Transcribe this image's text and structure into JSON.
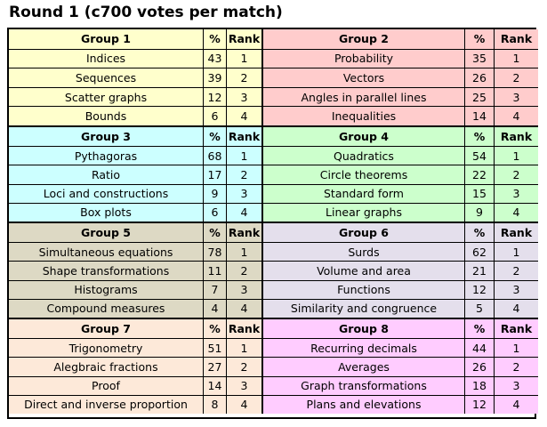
{
  "title": "Round 1 (c700 votes per match)",
  "columns": {
    "pct": "%",
    "rank": "Rank"
  },
  "groups": [
    {
      "name": "Group 1",
      "color": "#FFFFCC",
      "items": [
        {
          "topic": "Indices",
          "pct": "43",
          "rank": "1"
        },
        {
          "topic": "Sequences",
          "pct": "39",
          "rank": "2"
        },
        {
          "topic": "Scatter graphs",
          "pct": "12",
          "rank": "3"
        },
        {
          "topic": "Bounds",
          "pct": "6",
          "rank": "4"
        }
      ]
    },
    {
      "name": "Group 2",
      "color": "#FFCCCC",
      "items": [
        {
          "topic": "Probability",
          "pct": "35",
          "rank": "1"
        },
        {
          "topic": "Vectors",
          "pct": "26",
          "rank": "2"
        },
        {
          "topic": "Angles in parallel lines",
          "pct": "25",
          "rank": "3"
        },
        {
          "topic": "Inequalities",
          "pct": "14",
          "rank": "4"
        }
      ]
    },
    {
      "name": "Group 3",
      "color": "#CCFFFF",
      "items": [
        {
          "topic": "Pythagoras",
          "pct": "68",
          "rank": "1"
        },
        {
          "topic": "Ratio",
          "pct": "17",
          "rank": "2"
        },
        {
          "topic": "Loci and constructions",
          "pct": "9",
          "rank": "3"
        },
        {
          "topic": "Box plots",
          "pct": "6",
          "rank": "4"
        }
      ]
    },
    {
      "name": "Group 4",
      "color": "#CCFFCC",
      "items": [
        {
          "topic": "Quadratics",
          "pct": "54",
          "rank": "1"
        },
        {
          "topic": "Circle theorems",
          "pct": "22",
          "rank": "2"
        },
        {
          "topic": "Standard form",
          "pct": "15",
          "rank": "3"
        },
        {
          "topic": "Linear graphs",
          "pct": "9",
          "rank": "4"
        }
      ]
    },
    {
      "name": "Group 5",
      "color": "#DDD9C4",
      "items": [
        {
          "topic": "Simultaneous equations",
          "pct": "78",
          "rank": "1"
        },
        {
          "topic": "Shape transformations",
          "pct": "11",
          "rank": "2"
        },
        {
          "topic": "Histograms",
          "pct": "7",
          "rank": "3"
        },
        {
          "topic": "Compound measures",
          "pct": "4",
          "rank": "4"
        }
      ]
    },
    {
      "name": "Group 6",
      "color": "#E4DFEC",
      "items": [
        {
          "topic": "Surds",
          "pct": "62",
          "rank": "1"
        },
        {
          "topic": "Volume and area",
          "pct": "21",
          "rank": "2"
        },
        {
          "topic": "Functions",
          "pct": "12",
          "rank": "3"
        },
        {
          "topic": "Similarity and congruence",
          "pct": "5",
          "rank": "4"
        }
      ]
    },
    {
      "name": "Group 7",
      "color": "#FDE9D9",
      "items": [
        {
          "topic": "Trigonometry",
          "pct": "51",
          "rank": "1"
        },
        {
          "topic": "Alegbraic fractions",
          "pct": "27",
          "rank": "2"
        },
        {
          "topic": "Proof",
          "pct": "14",
          "rank": "3"
        },
        {
          "topic": "Direct and inverse proportion",
          "pct": "8",
          "rank": "4"
        }
      ]
    },
    {
      "name": "Group 8",
      "color": "#FFCCFF",
      "items": [
        {
          "topic": "Recurring decimals",
          "pct": "44",
          "rank": "1"
        },
        {
          "topic": "Averages",
          "pct": "26",
          "rank": "2"
        },
        {
          "topic": "Graph transformations",
          "pct": "18",
          "rank": "3"
        },
        {
          "topic": "Plans and elevations",
          "pct": "12",
          "rank": "4"
        }
      ]
    }
  ]
}
